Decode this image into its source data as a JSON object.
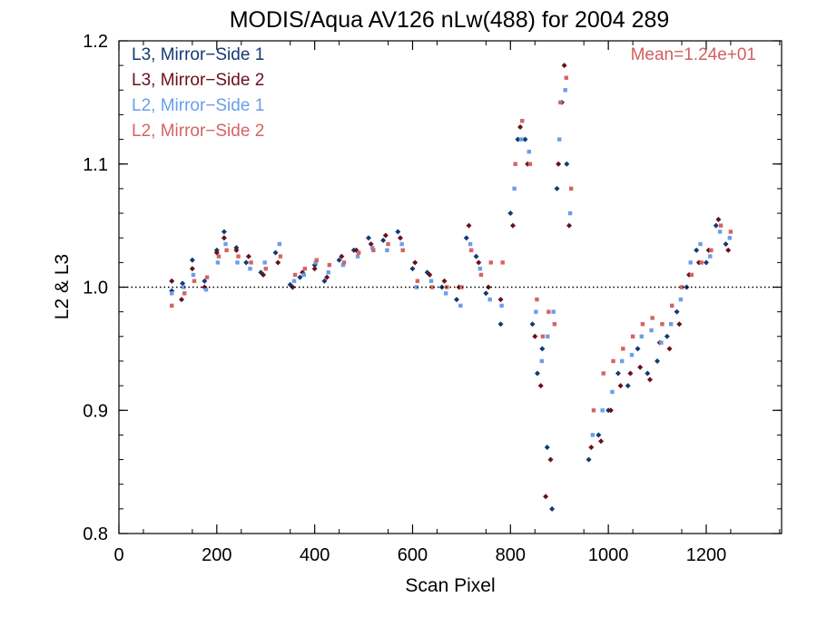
{
  "chart_data": {
    "type": "scatter",
    "title": "MODIS/Aqua AV126 nLw(488) for 2004 289",
    "xlabel": "Scan Pixel",
    "ylabel": "L2 & L3",
    "xlim": [
      0,
      1354
    ],
    "ylim": [
      0.8,
      1.2
    ],
    "xticks": [
      0,
      200,
      400,
      600,
      800,
      1000,
      1200
    ],
    "yticks": [
      0.8,
      0.9,
      1.0,
      1.1,
      1.2
    ],
    "xtick_labels": [
      "0",
      "200",
      "400",
      "600",
      "800",
      "1000",
      "1200"
    ],
    "ytick_labels": [
      "0.8",
      "0.9",
      "1.0",
      "1.1",
      "1.2"
    ],
    "reference_line": 1.0,
    "grid": false,
    "legend_position": "top-left",
    "annotation": "Mean=1.24e+01",
    "annotation_color": "#d06060",
    "series": [
      {
        "name": "L3, Mirror−Side 1",
        "color": "#143a73",
        "marker": "diamond",
        "points": [
          [
            108,
            0.997
          ],
          [
            130,
            1.003
          ],
          [
            150,
            1.022
          ],
          [
            175,
            1.005
          ],
          [
            200,
            1.03
          ],
          [
            215,
            1.045
          ],
          [
            240,
            1.032
          ],
          [
            260,
            1.02
          ],
          [
            290,
            1.012
          ],
          [
            320,
            1.028
          ],
          [
            350,
            1.002
          ],
          [
            370,
            1.008
          ],
          [
            400,
            1.018
          ],
          [
            420,
            1.005
          ],
          [
            450,
            1.022
          ],
          [
            480,
            1.03
          ],
          [
            510,
            1.04
          ],
          [
            540,
            1.038
          ],
          [
            570,
            1.045
          ],
          [
            600,
            1.015
          ],
          [
            630,
            1.012
          ],
          [
            660,
            1.0
          ],
          [
            690,
            0.99
          ],
          [
            710,
            1.04
          ],
          [
            730,
            1.025
          ],
          [
            750,
            0.995
          ],
          [
            780,
            0.97
          ],
          [
            800,
            1.06
          ],
          [
            815,
            1.12
          ],
          [
            830,
            1.12
          ],
          [
            845,
            0.97
          ],
          [
            855,
            0.93
          ],
          [
            865,
            0.95
          ],
          [
            875,
            0.87
          ],
          [
            885,
            0.82
          ],
          [
            895,
            1.08
          ],
          [
            905,
            1.15
          ],
          [
            915,
            1.1
          ],
          [
            960,
            0.86
          ],
          [
            980,
            0.88
          ],
          [
            1000,
            0.9
          ],
          [
            1020,
            0.93
          ],
          [
            1040,
            0.92
          ],
          [
            1060,
            0.95
          ],
          [
            1080,
            0.93
          ],
          [
            1100,
            0.94
          ],
          [
            1120,
            0.96
          ],
          [
            1140,
            0.98
          ],
          [
            1160,
            1.0
          ],
          [
            1180,
            1.03
          ],
          [
            1200,
            1.02
          ],
          [
            1220,
            1.05
          ],
          [
            1240,
            1.035
          ]
        ]
      },
      {
        "name": "L3, Mirror−Side 2",
        "color": "#6b0f1a",
        "marker": "diamond",
        "points": [
          [
            108,
            1.005
          ],
          [
            128,
            0.99
          ],
          [
            150,
            1.015
          ],
          [
            175,
            1.0
          ],
          [
            200,
            1.028
          ],
          [
            215,
            1.04
          ],
          [
            240,
            1.03
          ],
          [
            265,
            1.025
          ],
          [
            295,
            1.01
          ],
          [
            325,
            1.02
          ],
          [
            355,
            1.0
          ],
          [
            375,
            1.012
          ],
          [
            400,
            1.015
          ],
          [
            425,
            1.008
          ],
          [
            455,
            1.025
          ],
          [
            485,
            1.03
          ],
          [
            515,
            1.035
          ],
          [
            545,
            1.042
          ],
          [
            575,
            1.04
          ],
          [
            605,
            1.02
          ],
          [
            635,
            1.01
          ],
          [
            665,
            1.005
          ],
          [
            695,
            1.0
          ],
          [
            715,
            1.05
          ],
          [
            735,
            1.02
          ],
          [
            755,
            1.0
          ],
          [
            780,
            0.99
          ],
          [
            805,
            1.05
          ],
          [
            820,
            1.13
          ],
          [
            835,
            1.1
          ],
          [
            850,
            0.96
          ],
          [
            862,
            0.92
          ],
          [
            872,
            0.83
          ],
          [
            882,
            0.86
          ],
          [
            898,
            1.1
          ],
          [
            910,
            1.18
          ],
          [
            920,
            1.05
          ],
          [
            965,
            0.87
          ],
          [
            985,
            0.875
          ],
          [
            1005,
            0.9
          ],
          [
            1025,
            0.92
          ],
          [
            1045,
            0.93
          ],
          [
            1065,
            0.935
          ],
          [
            1085,
            0.925
          ],
          [
            1105,
            0.955
          ],
          [
            1125,
            0.95
          ],
          [
            1145,
            0.97
          ],
          [
            1165,
            1.01
          ],
          [
            1185,
            1.02
          ],
          [
            1205,
            1.03
          ],
          [
            1225,
            1.055
          ],
          [
            1245,
            1.03
          ]
        ]
      },
      {
        "name": "L2, Mirror−Side 1",
        "color": "#6a9fe8",
        "marker": "square",
        "points": [
          [
            108,
            0.995
          ],
          [
            132,
            1.0
          ],
          [
            152,
            1.01
          ],
          [
            178,
            0.998
          ],
          [
            202,
            1.02
          ],
          [
            218,
            1.035
          ],
          [
            242,
            1.02
          ],
          [
            268,
            1.015
          ],
          [
            298,
            1.02
          ],
          [
            328,
            1.035
          ],
          [
            358,
            1.005
          ],
          [
            378,
            1.01
          ],
          [
            402,
            1.02
          ],
          [
            428,
            1.012
          ],
          [
            458,
            1.018
          ],
          [
            488,
            1.025
          ],
          [
            518,
            1.032
          ],
          [
            548,
            1.03
          ],
          [
            578,
            1.035
          ],
          [
            608,
            1.0
          ],
          [
            638,
            1.005
          ],
          [
            668,
            0.995
          ],
          [
            698,
            0.985
          ],
          [
            718,
            1.035
          ],
          [
            738,
            1.015
          ],
          [
            758,
            0.99
          ],
          [
            782,
            0.985
          ],
          [
            808,
            1.08
          ],
          [
            822,
            1.12
          ],
          [
            838,
            1.11
          ],
          [
            852,
            0.98
          ],
          [
            864,
            0.94
          ],
          [
            876,
            0.96
          ],
          [
            888,
            0.98
          ],
          [
            900,
            1.12
          ],
          [
            912,
            1.16
          ],
          [
            922,
            1.06
          ],
          [
            968,
            0.88
          ],
          [
            988,
            0.9
          ],
          [
            1008,
            0.915
          ],
          [
            1028,
            0.94
          ],
          [
            1048,
            0.945
          ],
          [
            1068,
            0.96
          ],
          [
            1088,
            0.965
          ],
          [
            1108,
            0.955
          ],
          [
            1128,
            0.97
          ],
          [
            1148,
            0.99
          ],
          [
            1168,
            1.02
          ],
          [
            1188,
            1.035
          ],
          [
            1208,
            1.025
          ],
          [
            1228,
            1.045
          ],
          [
            1248,
            1.04
          ]
        ]
      },
      {
        "name": "L2, Mirror−Side 2",
        "color": "#d46464",
        "marker": "square",
        "points": [
          [
            108,
            0.985
          ],
          [
            134,
            0.995
          ],
          [
            154,
            1.005
          ],
          [
            180,
            1.008
          ],
          [
            204,
            1.025
          ],
          [
            220,
            1.03
          ],
          [
            244,
            1.025
          ],
          [
            270,
            1.02
          ],
          [
            300,
            1.015
          ],
          [
            330,
            1.025
          ],
          [
            360,
            1.01
          ],
          [
            380,
            1.015
          ],
          [
            404,
            1.022
          ],
          [
            430,
            1.018
          ],
          [
            460,
            1.02
          ],
          [
            490,
            1.028
          ],
          [
            520,
            1.03
          ],
          [
            550,
            1.035
          ],
          [
            580,
            1.03
          ],
          [
            610,
            1.005
          ],
          [
            640,
            1.0
          ],
          [
            670,
            1.0
          ],
          [
            700,
            1.0
          ],
          [
            720,
            1.03
          ],
          [
            740,
            1.01
          ],
          [
            760,
            1.02
          ],
          [
            784,
            1.02
          ],
          [
            810,
            1.1
          ],
          [
            824,
            1.135
          ],
          [
            840,
            1.1
          ],
          [
            854,
            0.99
          ],
          [
            866,
            0.96
          ],
          [
            878,
            0.98
          ],
          [
            890,
            0.97
          ],
          [
            902,
            1.15
          ],
          [
            914,
            1.17
          ],
          [
            924,
            1.08
          ],
          [
            970,
            0.9
          ],
          [
            990,
            0.93
          ],
          [
            1010,
            0.94
          ],
          [
            1030,
            0.95
          ],
          [
            1050,
            0.96
          ],
          [
            1070,
            0.97
          ],
          [
            1090,
            0.975
          ],
          [
            1110,
            0.97
          ],
          [
            1130,
            0.985
          ],
          [
            1150,
            1.0
          ],
          [
            1170,
            1.01
          ],
          [
            1190,
            1.02
          ],
          [
            1210,
            1.03
          ],
          [
            1230,
            1.05
          ],
          [
            1250,
            1.045
          ]
        ]
      }
    ]
  }
}
